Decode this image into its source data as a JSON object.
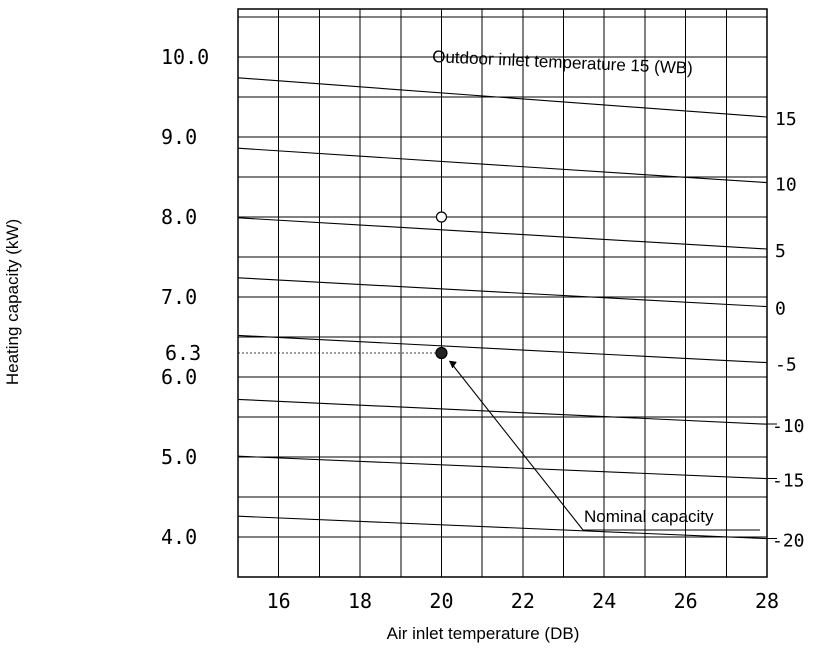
{
  "chart_data": {
    "type": "line",
    "title": "",
    "xlabel": "Air inlet temperature (DB)",
    "ylabel": "Heating capacity (kW)",
    "xlim": [
      15,
      28
    ],
    "ylim": [
      3.5,
      10.6
    ],
    "x_ticks": [
      16,
      18,
      20,
      22,
      24,
      26,
      28
    ],
    "x_tick_labels": [
      "16",
      "18",
      "20",
      "22",
      "24",
      "26",
      "28"
    ],
    "y_ticks": [
      4.0,
      5.0,
      6.0,
      7.0,
      8.0,
      9.0,
      10.0
    ],
    "y_tick_labels": [
      "4.0",
      "5.0",
      "6.0",
      "7.0",
      "8.0",
      "9.0",
      "10.0"
    ],
    "x_gridlines": [
      15,
      16,
      17,
      18,
      19,
      20,
      21,
      22,
      23,
      24,
      25,
      26,
      27,
      28
    ],
    "y_gridlines": [
      3.5,
      4.0,
      4.5,
      5.0,
      5.5,
      6.0,
      6.5,
      7.0,
      7.5,
      8.0,
      8.5,
      9.0,
      9.5,
      10.0,
      10.5
    ],
    "grid": true,
    "legend_placement": "none",
    "series": [
      {
        "name": "15",
        "x": [
          15,
          28
        ],
        "y": [
          9.74,
          9.25
        ]
      },
      {
        "name": "10",
        "x": [
          15,
          28
        ],
        "y": [
          8.86,
          8.43
        ]
      },
      {
        "name": "5",
        "x": [
          15,
          28
        ],
        "y": [
          7.99,
          7.6
        ]
      },
      {
        "name": "0",
        "x": [
          15,
          28
        ],
        "y": [
          7.24,
          6.88
        ]
      },
      {
        "name": "-5",
        "x": [
          15,
          28
        ],
        "y": [
          6.52,
          6.18
        ]
      },
      {
        "name": "-10",
        "x": [
          15,
          28
        ],
        "y": [
          5.72,
          5.41
        ]
      },
      {
        "name": "-15",
        "x": [
          15,
          28
        ],
        "y": [
          5.01,
          4.73
        ]
      },
      {
        "name": "-20",
        "x": [
          15,
          28
        ],
        "y": [
          4.26,
          3.98
        ]
      }
    ],
    "points": [
      {
        "x": 20,
        "y": 8.0,
        "style": "open"
      },
      {
        "x": 20,
        "y": 6.3,
        "style": "filled"
      }
    ],
    "annotations": {
      "top_series_label": "Outdoor inlet temperature 15 (WB)",
      "nominal_label": "Nominal capacity",
      "nominal_value_label": "6.3",
      "right_scale_labels": [
        "15",
        "10",
        "5",
        "0",
        "-5",
        "-10",
        "-15",
        "-20"
      ]
    }
  }
}
